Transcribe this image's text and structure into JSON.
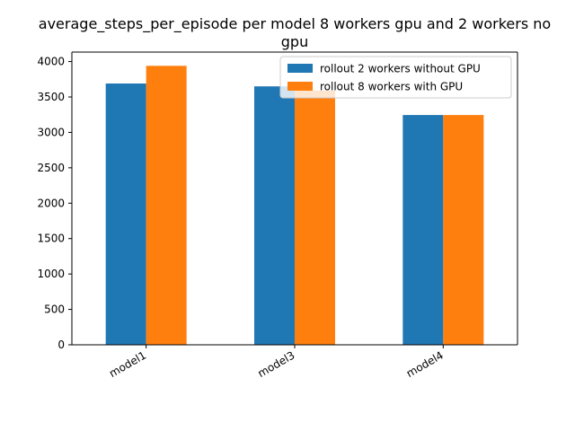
{
  "chart_data": {
    "type": "bar",
    "title_lines": [
      "average_steps_per_episode per model 8 workers gpu and 2 workers no",
      "gpu"
    ],
    "categories": [
      "model1",
      "model3",
      "model4"
    ],
    "series": [
      {
        "name": "rollout 2 workers without GPU",
        "color": "#1f77b4",
        "values": [
          3690,
          3650,
          3245
        ]
      },
      {
        "name": "rollout 8 workers with GPU",
        "color": "#ff7f0e",
        "values": [
          3940,
          3590,
          3245
        ]
      }
    ],
    "yticks": [
      "0",
      "500",
      "1000",
      "1500",
      "2000",
      "2500",
      "3000",
      "3500",
      "4000"
    ],
    "ylim": [
      0,
      4134
    ],
    "grid": false,
    "legend_position": "top-right"
  }
}
